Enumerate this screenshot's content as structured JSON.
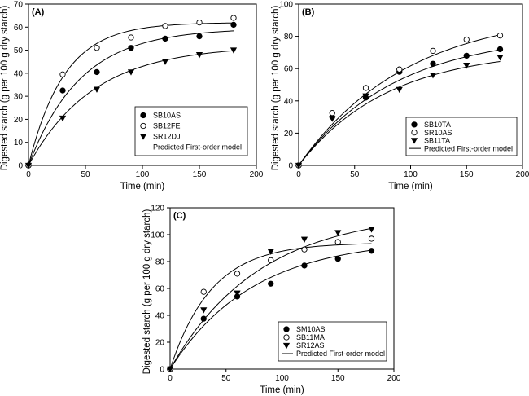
{
  "figure_labels": {
    "model_legend": "Predicted First-order model"
  },
  "chart_data": [
    {
      "type": "scatter",
      "panel_label": "(A)",
      "xlabel": "Time (min)",
      "ylabel": "Digested starch (g per 100 g dry starch)",
      "xlim": [
        0,
        200
      ],
      "ylim": [
        0,
        70
      ],
      "xticks": [
        0,
        50,
        100,
        150,
        200
      ],
      "yticks": [
        0,
        10,
        20,
        30,
        40,
        50,
        60,
        70
      ],
      "legend_position": "lower-right",
      "model_label": "Predicted First-order model",
      "series": [
        {
          "name": "SB10AS",
          "marker": "filled-circle",
          "x": [
            0,
            30,
            60,
            90,
            120,
            150,
            180
          ],
          "values": [
            0,
            32.5,
            40.5,
            51,
            55,
            56,
            61
          ],
          "fit": {
            "cinf": 59.5,
            "k": 0.022
          }
        },
        {
          "name": "SB12FE",
          "marker": "open-circle",
          "x": [
            0,
            30,
            60,
            90,
            120,
            150,
            180
          ],
          "values": [
            0,
            39.5,
            51,
            55.5,
            60.5,
            62,
            64
          ],
          "fit": {
            "cinf": 62,
            "k": 0.032
          }
        },
        {
          "name": "SR12DJ",
          "marker": "filled-triangle-down",
          "x": [
            0,
            30,
            60,
            90,
            120,
            150,
            180
          ],
          "values": [
            0,
            20.5,
            33,
            40.5,
            45,
            48,
            50
          ],
          "fit": {
            "cinf": 52,
            "k": 0.0175
          }
        }
      ]
    },
    {
      "type": "scatter",
      "panel_label": "(B)",
      "xlabel": "Time (min)",
      "ylabel": "Digested starch (g per 100 g dry starch)",
      "xlim": [
        0,
        200
      ],
      "ylim": [
        0,
        100
      ],
      "xticks": [
        0,
        50,
        100,
        150,
        200
      ],
      "yticks": [
        0,
        20,
        40,
        60,
        80,
        100
      ],
      "legend_position": "lower-right",
      "model_label": "Predicted First-order model",
      "series": [
        {
          "name": "SB10TA",
          "marker": "filled-circle",
          "x": [
            0,
            30,
            60,
            90,
            120,
            150,
            180
          ],
          "values": [
            0,
            30,
            42,
            58,
            63,
            68,
            72
          ],
          "fit": {
            "cinf": 82,
            "k": 0.0115
          }
        },
        {
          "name": "SR10AS",
          "marker": "open-circle",
          "x": [
            0,
            30,
            60,
            90,
            120,
            150,
            180
          ],
          "values": [
            0,
            32.5,
            48,
            59.5,
            71,
            78,
            80.5
          ],
          "fit": {
            "cinf": 96,
            "k": 0.0103
          }
        },
        {
          "name": "SB11TA",
          "marker": "filled-triangle-down",
          "x": [
            0,
            30,
            60,
            90,
            120,
            150,
            180
          ],
          "values": [
            0,
            29,
            43,
            47,
            56,
            62,
            67
          ],
          "fit": {
            "cinf": 72,
            "k": 0.0125
          }
        }
      ]
    },
    {
      "type": "scatter",
      "panel_label": "(C)",
      "xlabel": "Time (min)",
      "ylabel": "Digested starch (g per 100 g dry starch)",
      "xlim": [
        0,
        200
      ],
      "ylim": [
        0,
        120
      ],
      "xticks": [
        0,
        50,
        100,
        150,
        200
      ],
      "yticks": [
        0,
        20,
        40,
        60,
        80,
        100,
        120
      ],
      "legend_position": "lower-right",
      "model_label": "Predicted First-order model",
      "series": [
        {
          "name": "SM10AS",
          "marker": "filled-circle",
          "x": [
            0,
            30,
            60,
            90,
            120,
            150,
            180
          ],
          "values": [
            0,
            37.5,
            54,
            63.5,
            77,
            82,
            88
          ],
          "fit": {
            "cinf": 97,
            "k": 0.0135
          }
        },
        {
          "name": "SB11MA",
          "marker": "open-circle",
          "x": [
            0,
            30,
            60,
            90,
            120,
            150,
            180
          ],
          "values": [
            0,
            57.5,
            71,
            81,
            89,
            94.5,
            97
          ],
          "fit": {
            "cinf": 94,
            "k": 0.027
          }
        },
        {
          "name": "SR12AS",
          "marker": "filled-triangle-down",
          "x": [
            0,
            30,
            60,
            90,
            120,
            150,
            180
          ],
          "values": [
            0,
            44,
            56.5,
            87.5,
            96.5,
            101.5,
            104
          ],
          "fit": {
            "cinf": 117,
            "k": 0.0125
          }
        }
      ]
    }
  ]
}
